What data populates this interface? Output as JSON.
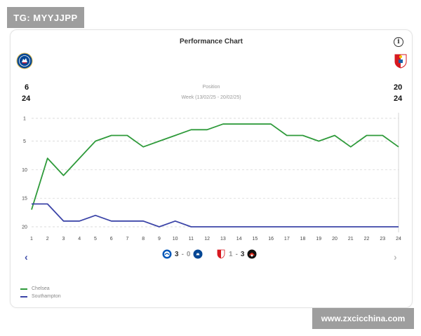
{
  "watermarks": {
    "top_left": "TG: MYYJJPP",
    "bottom_right": "www.zxcicchina.com"
  },
  "card": {
    "title": "Performance Chart",
    "info_icon": "info-icon",
    "left_team": {
      "stat_top": "6",
      "stat_bottom": "24"
    },
    "right_team": {
      "stat_top": "20",
      "stat_bottom": "24"
    },
    "chart_labels": {
      "metric": "Position",
      "week": "Week (13/02/25 - 20/02/25)"
    },
    "nav": {
      "prev": "‹",
      "next": "›"
    },
    "matches": [
      {
        "home": "Brighton",
        "score_home": "3",
        "sep": "-",
        "score_away": "0",
        "away": "Chelsea"
      },
      {
        "home": "Southampton",
        "score_home": "1",
        "sep": "-",
        "score_away": "3",
        "away": "Bournemouth"
      }
    ],
    "legend": [
      {
        "name": "Chelsea",
        "color": "#2e9a3a"
      },
      {
        "name": "Southampton",
        "color": "#3c45a8"
      }
    ]
  },
  "chart_data": {
    "type": "line",
    "x": [
      1,
      2,
      3,
      4,
      5,
      6,
      7,
      8,
      9,
      10,
      11,
      12,
      13,
      14,
      15,
      16,
      17,
      18,
      19,
      20,
      21,
      22,
      23,
      24
    ],
    "y_ticks": [
      1,
      5,
      10,
      15,
      20
    ],
    "ylim": [
      1,
      20
    ],
    "y_inverted": true,
    "grid": "horizontal-dashed",
    "series": [
      {
        "name": "Chelsea",
        "color": "#2e9a3a",
        "values": [
          17,
          8,
          11,
          8,
          5,
          4,
          4,
          6,
          5,
          4,
          3,
          3,
          2,
          2,
          2,
          2,
          4,
          4,
          5,
          4,
          6,
          4,
          4,
          6
        ]
      },
      {
        "name": "Southampton",
        "color": "#3c45a8",
        "values": [
          16,
          16,
          19,
          19,
          18,
          19,
          19,
          19,
          20,
          19,
          20,
          20,
          20,
          20,
          20,
          20,
          20,
          20,
          20,
          20,
          20,
          20,
          20,
          20
        ]
      }
    ]
  }
}
